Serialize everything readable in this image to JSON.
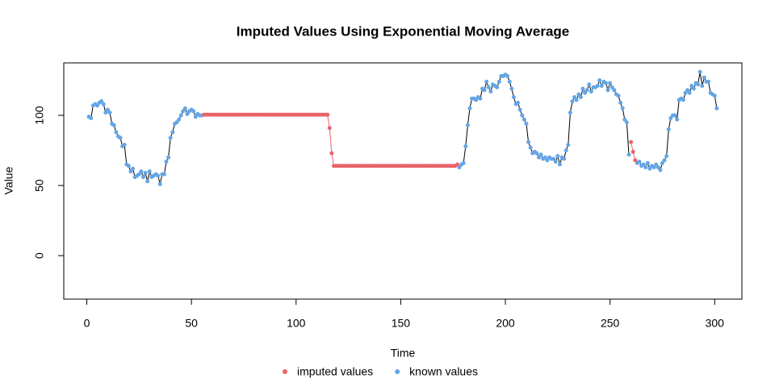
{
  "chart_data": {
    "type": "line",
    "title": "Imputed Values Using Exponential Moving Average",
    "x_label": "Time",
    "y_label": "Value",
    "x": [
      1,
      2,
      3,
      4,
      5,
      6,
      7,
      8,
      9,
      10,
      11,
      12,
      13,
      14,
      15,
      16,
      17,
      18,
      19,
      20,
      21,
      22,
      23,
      24,
      25,
      26,
      27,
      28,
      29,
      30,
      31,
      32,
      33,
      34,
      35,
      36,
      37,
      38,
      39,
      40,
      41,
      42,
      43,
      44,
      45,
      46,
      47,
      48,
      49,
      50,
      51,
      52,
      53,
      54,
      55,
      56,
      57,
      58,
      59,
      60,
      61,
      62,
      63,
      64,
      65,
      66,
      67,
      68,
      69,
      70,
      71,
      72,
      73,
      74,
      75,
      76,
      77,
      78,
      79,
      80,
      81,
      82,
      83,
      84,
      85,
      86,
      87,
      88,
      89,
      90,
      91,
      92,
      93,
      94,
      95,
      96,
      97,
      98,
      99,
      100,
      101,
      102,
      103,
      104,
      105,
      106,
      107,
      108,
      109,
      110,
      111,
      112,
      113,
      114,
      115,
      116,
      117,
      118,
      119,
      120,
      121,
      122,
      123,
      124,
      125,
      126,
      127,
      128,
      129,
      130,
      131,
      132,
      133,
      134,
      135,
      136,
      137,
      138,
      139,
      140,
      141,
      142,
      143,
      144,
      145,
      146,
      147,
      148,
      149,
      150,
      151,
      152,
      153,
      154,
      155,
      156,
      157,
      158,
      159,
      160,
      161,
      162,
      163,
      164,
      165,
      166,
      167,
      168,
      169,
      170,
      171,
      172,
      173,
      174,
      175,
      176,
      177,
      178,
      179,
      180,
      181,
      182,
      183,
      184,
      185,
      186,
      187,
      188,
      189,
      190,
      191,
      192,
      193,
      194,
      195,
      196,
      197,
      198,
      199,
      200,
      201,
      202,
      203,
      204,
      205,
      206,
      207,
      208,
      209,
      210,
      211,
      212,
      213,
      214,
      215,
      216,
      217,
      218,
      219,
      220,
      221,
      222,
      223,
      224,
      225,
      226,
      227,
      228,
      229,
      230,
      231,
      232,
      233,
      234,
      235,
      236,
      237,
      238,
      239,
      240,
      241,
      242,
      243,
      244,
      245,
      246,
      247,
      248,
      249,
      250,
      251,
      252,
      253,
      254,
      255,
      256,
      257,
      258,
      259,
      260,
      261,
      262,
      263,
      264,
      265,
      266,
      267,
      268,
      269,
      270,
      271,
      272,
      273,
      274,
      275,
      276,
      277,
      278,
      279,
      280,
      281,
      282,
      283,
      284,
      285,
      286,
      287,
      288,
      289,
      290,
      291,
      292,
      293,
      294,
      295,
      296,
      297,
      298,
      299,
      300,
      301
    ],
    "series": [
      {
        "name": "imputed values",
        "color": "#e8646a",
        "line_color": "#e8646a",
        "values": [
          null,
          null,
          null,
          null,
          null,
          null,
          null,
          null,
          null,
          null,
          null,
          null,
          null,
          null,
          null,
          null,
          null,
          null,
          null,
          null,
          null,
          null,
          null,
          null,
          null,
          null,
          null,
          null,
          null,
          null,
          null,
          null,
          null,
          null,
          null,
          null,
          null,
          null,
          null,
          null,
          null,
          null,
          null,
          null,
          null,
          null,
          null,
          null,
          null,
          null,
          null,
          null,
          null,
          null,
          null,
          100.5,
          100.5,
          100.5,
          100.5,
          100.5,
          100.5,
          100.5,
          100.5,
          100.5,
          100.5,
          100.5,
          100.5,
          100.5,
          100.5,
          100.5,
          100.5,
          100.5,
          100.5,
          100.5,
          100.5,
          100.5,
          100.5,
          100.5,
          100.5,
          100.5,
          100.5,
          100.5,
          100.5,
          100.5,
          100.5,
          100.5,
          100.5,
          100.5,
          100.5,
          100.5,
          100.5,
          100.5,
          100.5,
          100.5,
          100.5,
          100.5,
          100.5,
          100.5,
          100.5,
          100.5,
          100.5,
          100.5,
          100.5,
          100.5,
          100.5,
          100.5,
          100.5,
          100.5,
          100.5,
          100.5,
          100.5,
          100.5,
          100.5,
          100.5,
          100.5,
          91,
          73,
          64,
          64,
          64,
          64,
          64,
          64,
          64,
          64,
          64,
          64,
          64,
          64,
          64,
          64,
          64,
          64,
          64,
          64,
          64,
          64,
          64,
          64,
          64,
          64,
          64,
          64,
          64,
          64,
          64,
          64,
          64,
          64,
          64,
          64,
          64,
          64,
          64,
          64,
          64,
          64,
          64,
          64,
          64,
          64,
          64,
          64,
          64,
          64,
          64,
          64,
          64,
          64,
          64,
          64,
          64,
          64,
          64,
          64,
          64,
          65,
          null,
          null,
          null,
          null,
          null,
          null,
          null,
          null,
          null,
          null,
          null,
          null,
          null,
          null,
          null,
          null,
          null,
          null,
          null,
          null,
          null,
          null,
          null,
          null,
          null,
          null,
          null,
          null,
          null,
          null,
          null,
          null,
          null,
          null,
          null,
          null,
          null,
          null,
          null,
          null,
          null,
          null,
          null,
          null,
          null,
          null,
          null,
          null,
          null,
          null,
          null,
          null,
          null,
          null,
          null,
          null,
          null,
          null,
          null,
          null,
          null,
          null,
          null,
          null,
          null,
          null,
          null,
          null,
          null,
          null,
          null,
          null,
          null,
          null,
          null,
          null,
          null,
          null,
          null,
          null,
          null,
          null,
          81,
          74,
          68,
          null,
          null,
          null,
          null,
          null,
          null,
          null,
          null,
          null,
          null,
          null,
          null,
          null,
          null,
          null,
          null,
          null,
          null,
          null,
          null,
          null,
          null,
          null,
          null,
          null,
          null,
          null,
          null,
          null,
          null,
          null,
          null,
          null,
          null,
          null,
          null,
          null,
          null,
          null
        ]
      },
      {
        "name": "known values",
        "color": "#64a6e6",
        "line_color": "#000000",
        "values": [
          99,
          98,
          107,
          108,
          107,
          109,
          110,
          108,
          102,
          104,
          102,
          94,
          93,
          88,
          85,
          84,
          78,
          79,
          65,
          64,
          60,
          62,
          56,
          57,
          58,
          60,
          56,
          59,
          53,
          60,
          56,
          57,
          58,
          57,
          51,
          58,
          58,
          67,
          70,
          84,
          88,
          94,
          95,
          97,
          100,
          103,
          105,
          101,
          103,
          104,
          103,
          99,
          101,
          100,
          100,
          null,
          null,
          null,
          null,
          null,
          null,
          null,
          null,
          null,
          null,
          null,
          null,
          null,
          null,
          null,
          null,
          null,
          null,
          null,
          null,
          null,
          null,
          null,
          null,
          null,
          null,
          null,
          null,
          null,
          null,
          null,
          null,
          null,
          null,
          null,
          null,
          null,
          null,
          null,
          null,
          null,
          null,
          null,
          null,
          null,
          null,
          null,
          null,
          null,
          null,
          null,
          null,
          null,
          null,
          null,
          null,
          null,
          null,
          null,
          null,
          null,
          null,
          null,
          null,
          null,
          null,
          null,
          null,
          null,
          null,
          null,
          null,
          null,
          null,
          null,
          null,
          null,
          null,
          null,
          null,
          null,
          null,
          null,
          null,
          null,
          null,
          null,
          null,
          null,
          null,
          null,
          null,
          null,
          null,
          null,
          null,
          null,
          null,
          null,
          null,
          null,
          null,
          null,
          null,
          null,
          null,
          null,
          null,
          null,
          null,
          null,
          null,
          null,
          null,
          null,
          null,
          null,
          null,
          null,
          null,
          null,
          null,
          63,
          65,
          66,
          78,
          93,
          105,
          112,
          112,
          111,
          113,
          112,
          119,
          118,
          124,
          120,
          117,
          122,
          121,
          120,
          124,
          128,
          128,
          129,
          128,
          124,
          119,
          113,
          108,
          109,
          104,
          100,
          97,
          94,
          81,
          77,
          73,
          74,
          73,
          70,
          72,
          69,
          70,
          68,
          70,
          69,
          69,
          67,
          71,
          65,
          70,
          69,
          75,
          79,
          102,
          110,
          113,
          111,
          115,
          113,
          119,
          116,
          118,
          122,
          117,
          120,
          120,
          121,
          125,
          121,
          124,
          123,
          118,
          123,
          120,
          118,
          115,
          114,
          109,
          105,
          97,
          95,
          72,
          null,
          null,
          null,
          66,
          67,
          64,
          65,
          63,
          66,
          62,
          64,
          63,
          65,
          63,
          61,
          66,
          68,
          71,
          90,
          98,
          100,
          100,
          97,
          111,
          112,
          111,
          116,
          118,
          116,
          121,
          119,
          123,
          122,
          131,
          121,
          127,
          124,
          124,
          116,
          115,
          114,
          105
        ]
      }
    ],
    "xlim": [
      -11,
      313
    ],
    "ylim": [
      -31,
      137.4
    ],
    "xticks": [
      0,
      50,
      100,
      150,
      200,
      250,
      300
    ],
    "yticks": [
      0,
      50,
      100
    ]
  }
}
